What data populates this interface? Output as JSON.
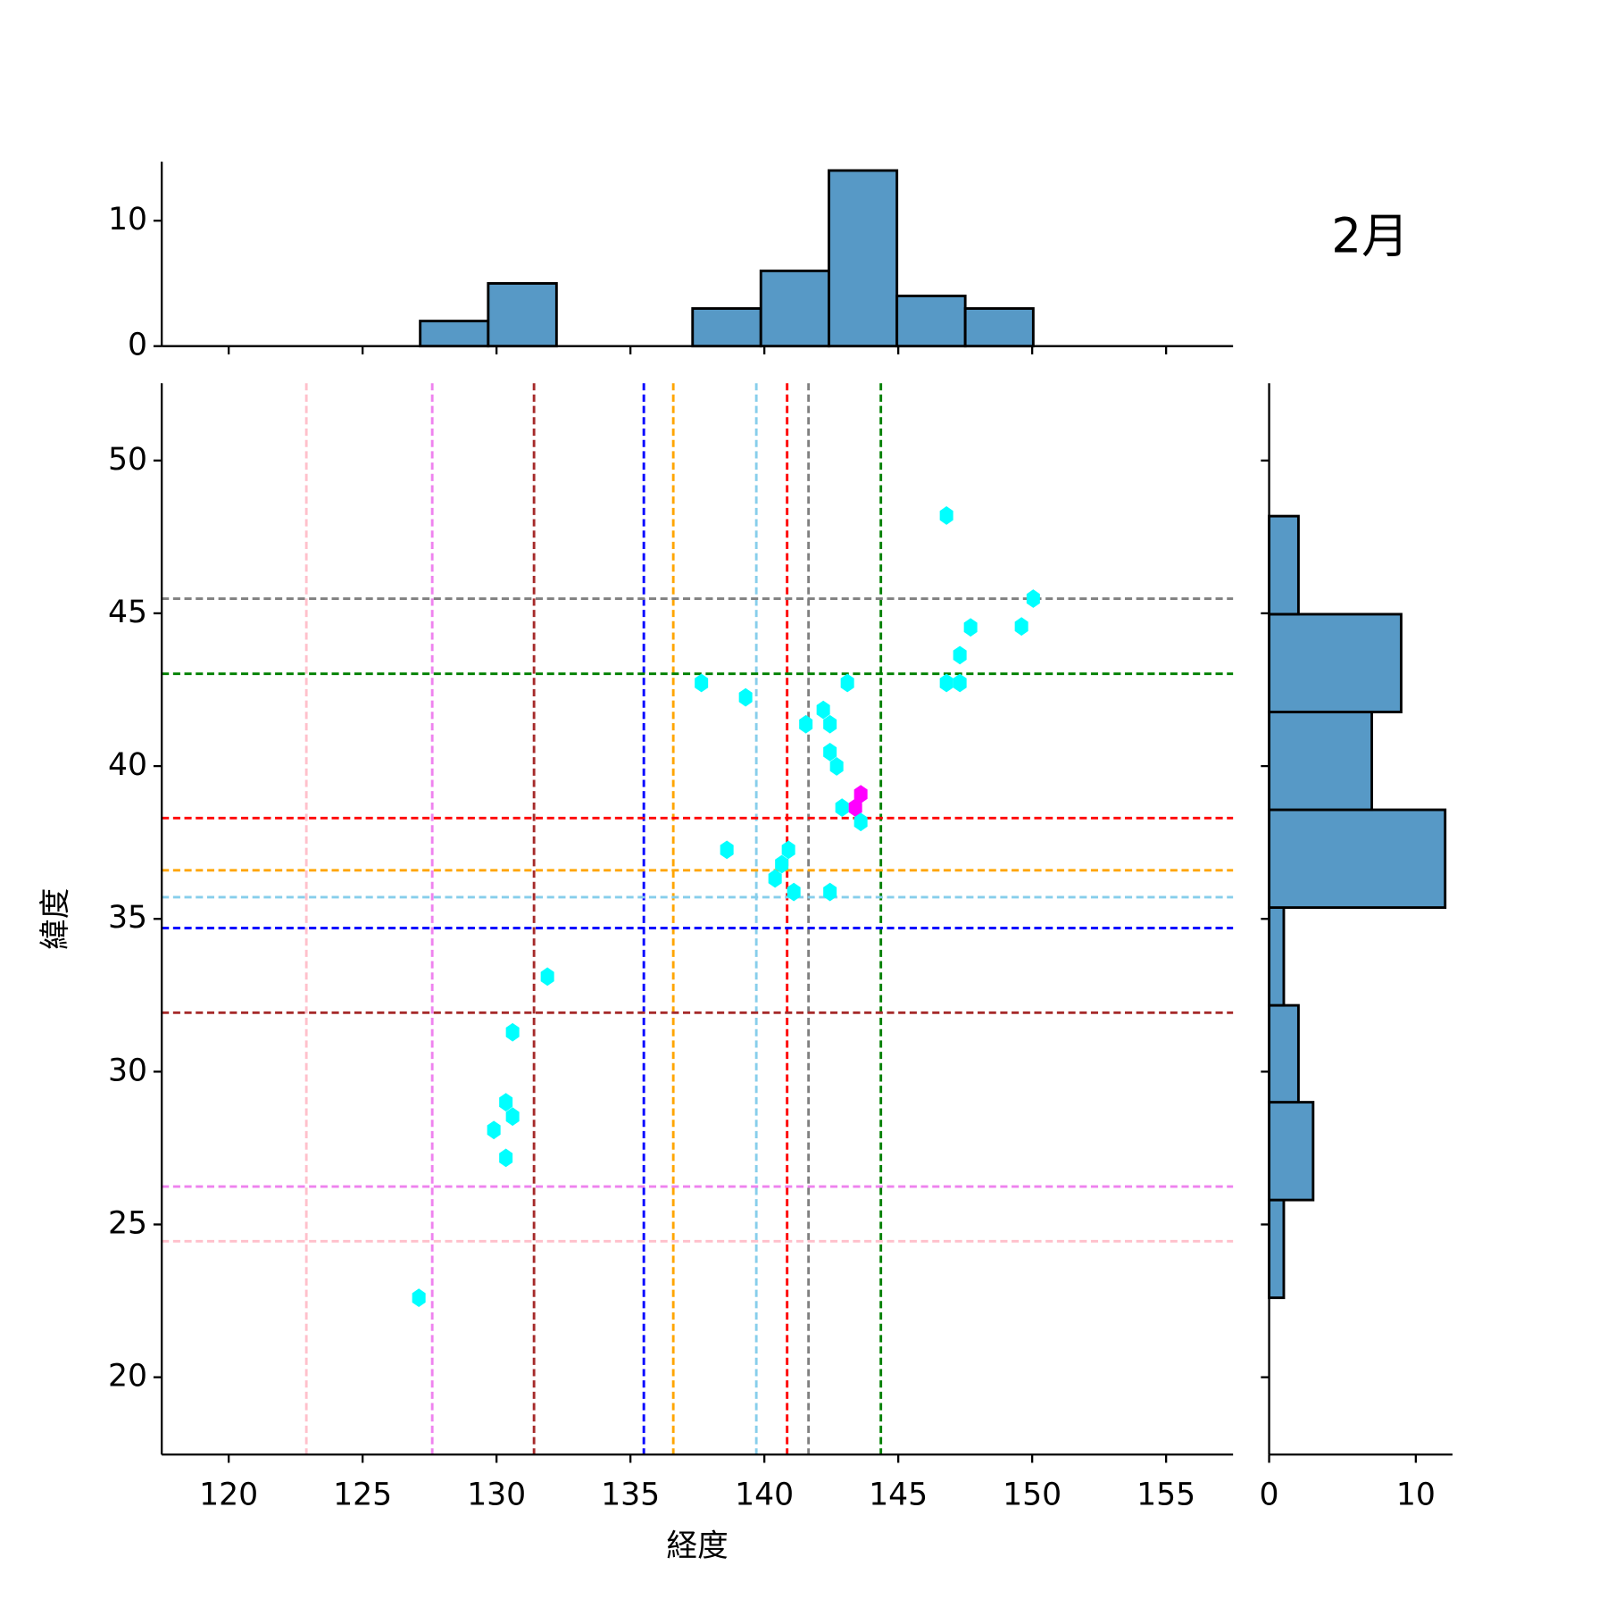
{
  "chart_data": {
    "type": "hexbin",
    "title": "2月",
    "xlabel": "経度",
    "ylabel": "緯度",
    "xlim": [
      117.5,
      157.5
    ],
    "ylim": [
      17.47,
      52.53
    ],
    "xticks": [
      120,
      125,
      130,
      135,
      140,
      145,
      150,
      155
    ],
    "yticks": [
      20,
      25,
      30,
      35,
      40,
      45,
      50
    ],
    "cmap": [
      "#00ffff",
      "#ff00ff"
    ],
    "hexes": {
      "x": [
        146.8,
        150.04,
        147.7,
        149.6,
        147.3,
        146.8,
        147.3,
        143.1,
        137.65,
        139.3,
        142.2,
        141.55,
        142.45,
        142.45,
        142.7,
        143.6,
        142.9,
        143.4,
        143.6,
        138.6,
        140.9,
        140.65,
        140.4,
        141.1,
        142.45,
        131.9,
        130.6,
        130.35,
        130.6,
        129.9,
        130.35,
        127.1
      ],
      "y": [
        48.2,
        45.48,
        44.54,
        44.57,
        43.63,
        42.72,
        42.72,
        42.72,
        42.72,
        42.25,
        41.84,
        41.37,
        41.37,
        40.46,
        39.99,
        39.08,
        38.64,
        38.64,
        38.17,
        37.26,
        37.26,
        36.79,
        36.32,
        35.88,
        35.88,
        33.11,
        31.29,
        29.0,
        28.53,
        28.09,
        27.18,
        22.6
      ],
      "counts": [
        1,
        1,
        1,
        1,
        1,
        1,
        1,
        1,
        1,
        1,
        1,
        1,
        1,
        1,
        1,
        2,
        1,
        2,
        1,
        1,
        1,
        1,
        1,
        1,
        1,
        1,
        1,
        1,
        1,
        1,
        1,
        1
      ]
    },
    "vlines": {
      "x": [
        122.9,
        127.6,
        131.4,
        135.5,
        136.6,
        139.7,
        140.85,
        141.65,
        144.35
      ],
      "colors": [
        "pink",
        "violet",
        "brown",
        "blue",
        "orange",
        "skyblue",
        "red",
        "gray",
        "green"
      ]
    },
    "hlines": {
      "y": [
        24.45,
        26.24,
        31.93,
        34.7,
        36.59,
        35.71,
        38.3,
        45.48,
        43.02
      ],
      "colors": [
        "pink",
        "violet",
        "brown",
        "blue",
        "orange",
        "skyblue",
        "red",
        "gray",
        "green"
      ]
    },
    "top_hist": {
      "bins": [
        127.15,
        129.69,
        132.24,
        134.78,
        137.32,
        139.87,
        142.41,
        144.95,
        147.5,
        150.04
      ],
      "counts": [
        2,
        5,
        0,
        0,
        3,
        6,
        14,
        4,
        3
      ],
      "ylim": [
        0,
        14.7
      ],
      "yticks": [
        0,
        10
      ],
      "color": "#5799c6"
    },
    "right_hist": {
      "bins": [
        22.6,
        25.8,
        29.0,
        32.17,
        35.37,
        38.57,
        41.77,
        44.97,
        48.18
      ],
      "counts": [
        1,
        3,
        2,
        1,
        12,
        7,
        9,
        2
      ],
      "xlim": [
        0,
        12.5
      ],
      "xticks": [
        0,
        10
      ],
      "color": "#5799c6"
    }
  }
}
